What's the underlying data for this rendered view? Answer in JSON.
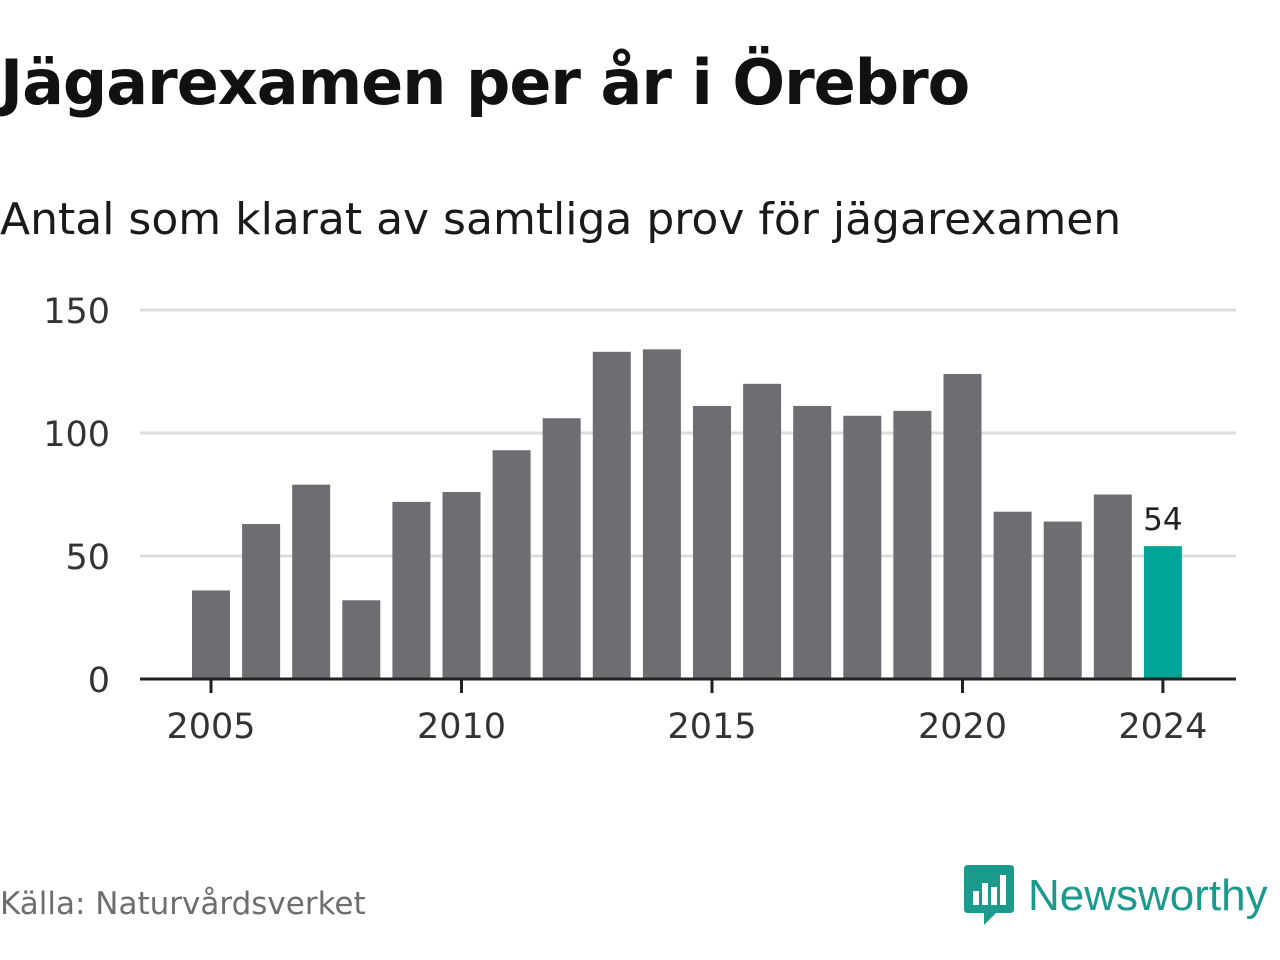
{
  "title": "Jägarexamen per år i Örebro",
  "subtitle": "Antal som klarat av samtliga prov för jägarexamen",
  "source": "Källa: Naturvårdsverket",
  "logo": {
    "name": "Newsworthy",
    "icon": "newsworthy-chart-bubble-icon"
  },
  "colors": {
    "bar": "#6e6d72",
    "highlight": "#00a59a",
    "grid": "#dcdcdc",
    "axis": "#222222",
    "text": "#333333",
    "brand": "#1a9a8c"
  },
  "chart_data": {
    "type": "bar",
    "title": "Jägarexamen per år i Örebro",
    "subtitle": "Antal som klarat av samtliga prov för jägarexamen",
    "categories": [
      2005,
      2006,
      2007,
      2008,
      2009,
      2010,
      2011,
      2012,
      2013,
      2014,
      2015,
      2016,
      2017,
      2018,
      2019,
      2020,
      2021,
      2022,
      2023,
      2024
    ],
    "values": [
      36,
      63,
      79,
      32,
      72,
      76,
      93,
      106,
      133,
      134,
      111,
      120,
      111,
      107,
      109,
      124,
      68,
      64,
      75,
      54
    ],
    "highlight_category": 2024,
    "data_labels": [
      {
        "category": 2024,
        "text": "54"
      }
    ],
    "x_ticks": [
      2005,
      2010,
      2015,
      2020,
      2024
    ],
    "y_ticks": [
      0,
      50,
      100,
      150
    ],
    "ylim": [
      0,
      150
    ],
    "xlabel": "",
    "ylabel": "",
    "grid": true,
    "legend": "none"
  }
}
